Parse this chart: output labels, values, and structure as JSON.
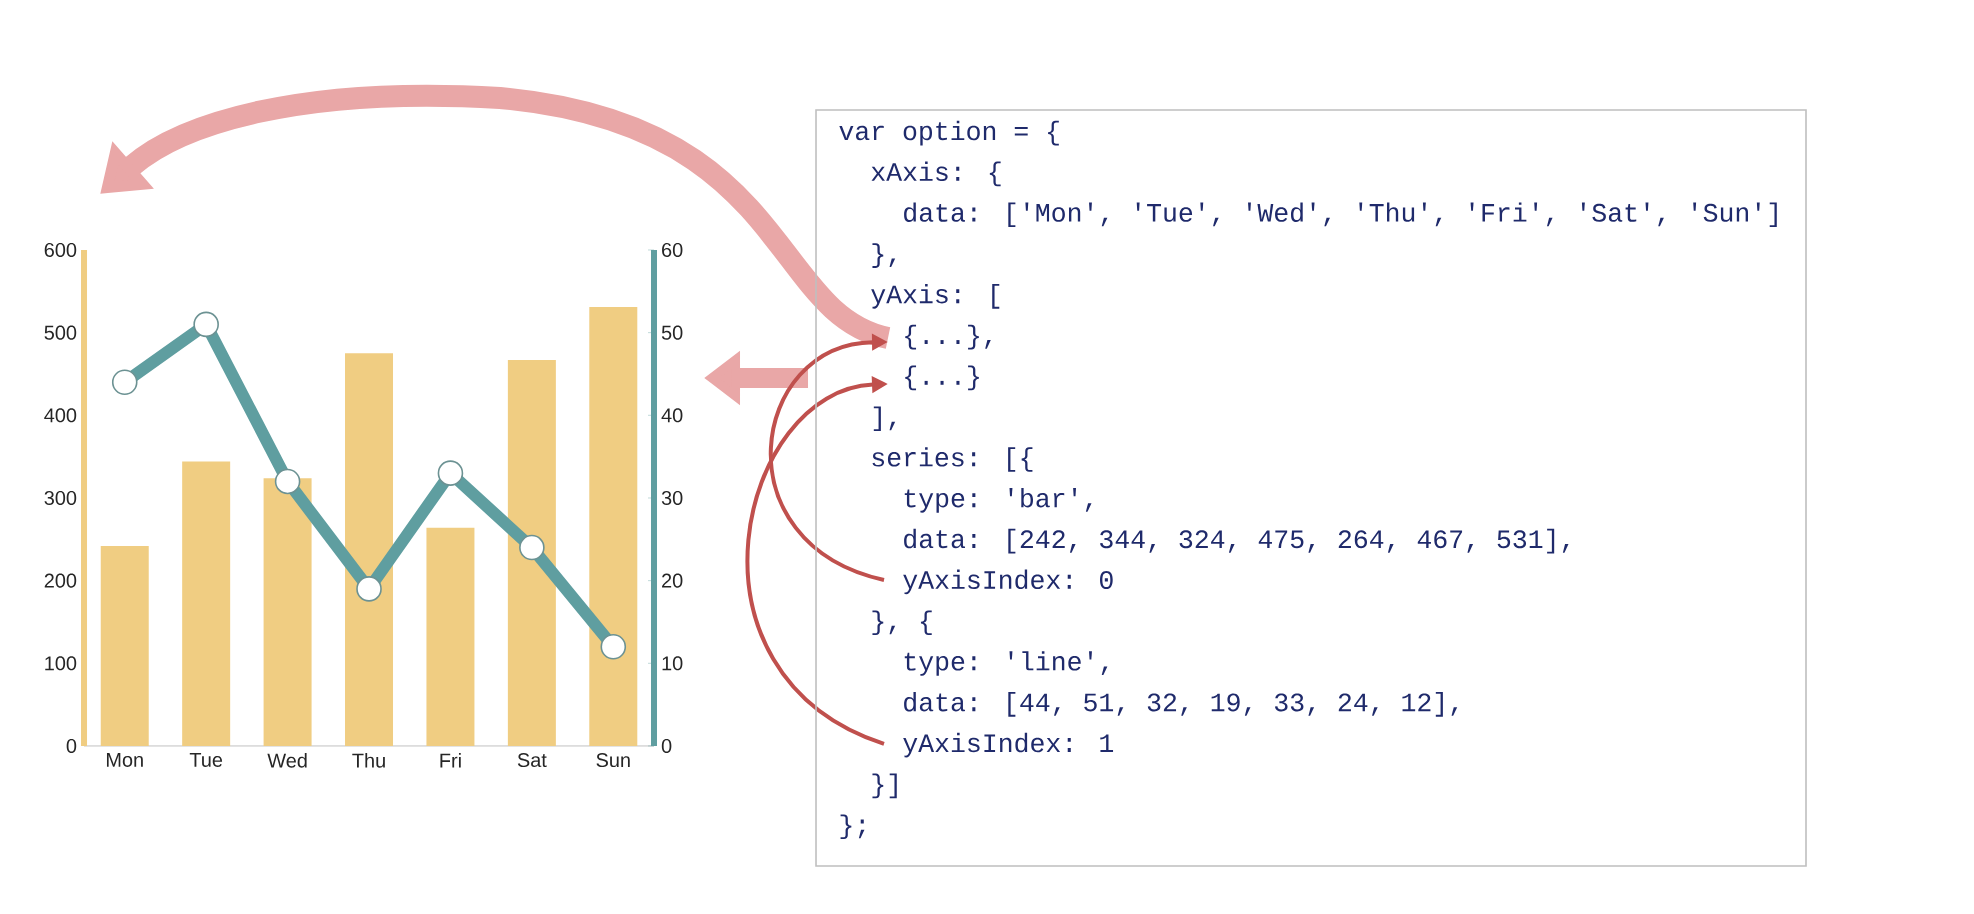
{
  "chart_data": [
    {
      "type": "bar",
      "categories": [
        "Mon",
        "Tue",
        "Wed",
        "Thu",
        "Fri",
        "Sat",
        "Sun"
      ],
      "series": [
        {
          "type": "bar",
          "color": "#f0cd82",
          "values": [
            242,
            344,
            324,
            475,
            264,
            467,
            531
          ]
        },
        {
          "type": "line",
          "color": "#5f9ea0",
          "axis": "y2",
          "marker": "circle",
          "values": [
            44,
            51,
            32,
            19,
            33,
            24,
            12
          ]
        }
      ],
      "ylim": [
        0,
        600
      ],
      "yticks": [
        0,
        100,
        200,
        300,
        400,
        500,
        600
      ],
      "y2lim": [
        0,
        60
      ],
      "y2ticks": [
        0,
        10,
        20,
        30,
        40,
        50,
        60
      ]
    },
    {
      "type": "other",
      "annotations": [
        "var option = {",
        "  xAxis: {",
        "    data: ['Mon', 'Tue', 'Wed', 'Thu', 'Fri', 'Sat', 'Sun']",
        "  },",
        "  yAxis: [",
        "    {...},",
        "    {...}",
        "  ],",
        "  series: [{",
        "    type: 'bar',",
        "    data: [242, 344, 324, 475, 264, 467, 531],",
        "    yAxisIndex: 0",
        "  }, {",
        "    type: 'line',",
        "    data: [44, 51, 32, 19, 33, 24, 12],",
        "    yAxisIndex: 1",
        "  }]",
        "};"
      ]
    }
  ]
}
